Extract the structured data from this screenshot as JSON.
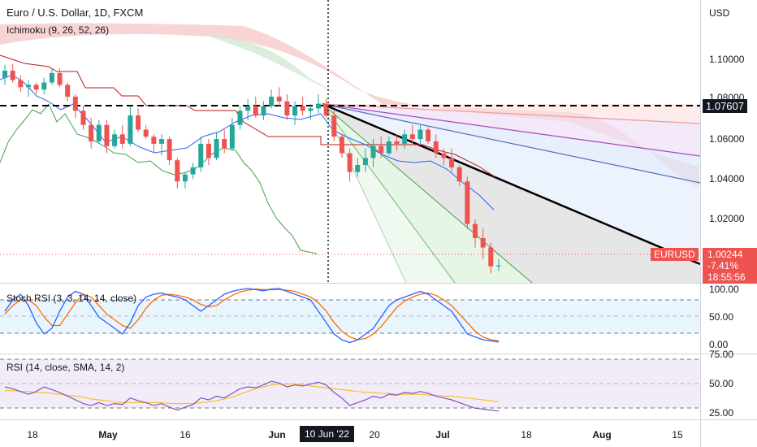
{
  "header": {
    "title": "Euro / U.S. Dollar, 1D, FXCM",
    "indicator": "Ichimoku (9, 26, 52, 26)",
    "currency": "USD"
  },
  "price_axis": {
    "labels": [
      "1.10000",
      "1.08000",
      "1.06000",
      "1.04000",
      "1.02000"
    ]
  },
  "badges": {
    "level_label": "1.07607",
    "symbol": "EURUSD",
    "price": "1.00244",
    "change": "-7.41%",
    "countdown": "18:55:56"
  },
  "stoch_panel": {
    "title": "Stoch RSI (3, 3, 14, 14, close)",
    "labels": [
      "100.00",
      "50.00",
      "0.00"
    ]
  },
  "rsi_panel": {
    "title": "RSI (14, close, SMA, 14, 2)",
    "labels": [
      "75.00",
      "50.00",
      "25.00"
    ]
  },
  "time_axis": {
    "labels": [
      "18",
      "May",
      "16",
      "Jun",
      "20",
      "Jul",
      "18",
      "Aug",
      "15"
    ],
    "crosshair_date": "10 Jun '22"
  },
  "colors": {
    "bull": "#26a69a",
    "bear": "#ef5350",
    "tenkan": "#2962ff",
    "kijun": "#b71c1c",
    "chikou": "#43a047",
    "cloud_red": "#f7c6c6",
    "cloud_green": "#cfe8cf",
    "stoch_k": "#2962ff",
    "stoch_d": "#ff6d00",
    "rsi": "#7e57c2",
    "rsi_ma": "#fbc02d"
  },
  "chart_data": {
    "type": "candlestick",
    "title": "Euro / U.S. Dollar, 1D, FXCM",
    "y_range": [
      0.995,
      1.115
    ],
    "horizontal_level": 1.07607,
    "last_price": 1.00244,
    "candles": [
      [
        1.082,
        1.0875,
        1.079,
        1.085
      ],
      [
        1.085,
        1.088,
        1.08,
        1.081
      ],
      [
        1.081,
        1.083,
        1.076,
        1.078
      ],
      [
        1.078,
        1.081,
        1.074,
        1.079
      ],
      [
        1.079,
        1.08,
        1.075,
        1.077
      ],
      [
        1.077,
        1.082,
        1.075,
        1.08
      ],
      [
        1.08,
        1.086,
        1.079,
        1.084
      ],
      [
        1.084,
        1.086,
        1.078,
        1.079
      ],
      [
        1.079,
        1.08,
        1.072,
        1.074
      ],
      [
        1.074,
        1.075,
        1.065,
        1.068
      ],
      [
        1.068,
        1.07,
        1.06,
        1.062
      ],
      [
        1.062,
        1.065,
        1.052,
        1.055
      ],
      [
        1.055,
        1.064,
        1.054,
        1.062
      ],
      [
        1.062,
        1.064,
        1.05,
        1.053
      ],
      [
        1.053,
        1.06,
        1.052,
        1.058
      ],
      [
        1.058,
        1.062,
        1.052,
        1.054
      ],
      [
        1.054,
        1.07,
        1.053,
        1.066
      ],
      [
        1.066,
        1.069,
        1.059,
        1.06
      ],
      [
        1.06,
        1.062,
        1.056,
        1.057
      ],
      [
        1.057,
        1.058,
        1.05,
        1.054
      ],
      [
        1.054,
        1.058,
        1.049,
        1.056
      ],
      [
        1.056,
        1.057,
        1.045,
        1.047
      ],
      [
        1.047,
        1.048,
        1.035,
        1.038
      ],
      [
        1.038,
        1.042,
        1.035,
        1.041
      ],
      [
        1.041,
        1.046,
        1.039,
        1.044
      ],
      [
        1.044,
        1.057,
        1.042,
        1.054
      ],
      [
        1.054,
        1.056,
        1.045,
        1.048
      ],
      [
        1.048,
        1.059,
        1.047,
        1.056
      ],
      [
        1.056,
        1.06,
        1.05,
        1.052
      ],
      [
        1.052,
        1.065,
        1.051,
        1.062
      ],
      [
        1.062,
        1.07,
        1.06,
        1.068
      ],
      [
        1.068,
        1.073,
        1.064,
        1.07
      ],
      [
        1.07,
        1.074,
        1.065,
        1.066
      ],
      [
        1.066,
        1.072,
        1.064,
        1.07
      ],
      [
        1.07,
        1.077,
        1.069,
        1.074
      ],
      [
        1.074,
        1.078,
        1.07,
        1.072
      ],
      [
        1.072,
        1.075,
        1.064,
        1.066
      ],
      [
        1.066,
        1.072,
        1.062,
        1.07
      ],
      [
        1.07,
        1.074,
        1.066,
        1.068
      ],
      [
        1.068,
        1.071,
        1.064,
        1.069
      ],
      [
        1.069,
        1.075,
        1.067,
        1.071
      ],
      [
        1.071,
        1.073,
        1.065,
        1.066
      ],
      [
        1.066,
        1.068,
        1.055,
        1.057
      ],
      [
        1.057,
        1.058,
        1.048,
        1.05
      ],
      [
        1.05,
        1.052,
        1.038,
        1.042
      ],
      [
        1.042,
        1.048,
        1.04,
        1.045
      ],
      [
        1.045,
        1.052,
        1.042,
        1.048
      ],
      [
        1.048,
        1.056,
        1.044,
        1.053
      ],
      [
        1.053,
        1.057,
        1.048,
        1.05
      ],
      [
        1.05,
        1.057,
        1.049,
        1.055
      ],
      [
        1.055,
        1.058,
        1.051,
        1.054
      ],
      [
        1.054,
        1.06,
        1.052,
        1.058
      ],
      [
        1.058,
        1.062,
        1.054,
        1.056
      ],
      [
        1.056,
        1.062,
        1.054,
        1.06
      ],
      [
        1.06,
        1.061,
        1.054,
        1.055
      ],
      [
        1.055,
        1.058,
        1.048,
        1.05
      ],
      [
        1.05,
        1.052,
        1.045,
        1.048
      ],
      [
        1.048,
        1.052,
        1.042,
        1.044
      ],
      [
        1.044,
        1.045,
        1.036,
        1.038
      ],
      [
        1.038,
        1.04,
        1.018,
        1.02
      ],
      [
        1.02,
        1.022,
        1.01,
        1.014
      ],
      [
        1.014,
        1.018,
        1.005,
        1.01
      ],
      [
        1.01,
        1.012,
        0.999,
        1.002
      ],
      [
        1.002,
        1.005,
        1.0,
        1.0024
      ]
    ],
    "stoch_rsi": {
      "ylim": [
        0,
        100
      ],
      "k": [
        60,
        80,
        90,
        70,
        40,
        20,
        30,
        60,
        85,
        95,
        90,
        70,
        50,
        40,
        30,
        20,
        40,
        70,
        85,
        90,
        92,
        88,
        85,
        80,
        70,
        60,
        70,
        80,
        90,
        95,
        98,
        100,
        98,
        96,
        99,
        100,
        95,
        90,
        85,
        80,
        60,
        40,
        20,
        10,
        5,
        10,
        20,
        30,
        50,
        70,
        80,
        85,
        90,
        95,
        90,
        80,
        70,
        60,
        40,
        20,
        15,
        10,
        8,
        6
      ],
      "d": [
        55,
        70,
        80,
        80,
        70,
        50,
        35,
        35,
        55,
        75,
        90,
        85,
        70,
        55,
        45,
        35,
        30,
        45,
        65,
        80,
        88,
        90,
        88,
        85,
        80,
        72,
        68,
        70,
        80,
        88,
        94,
        97,
        99,
        98,
        98,
        98,
        97,
        95,
        90,
        85,
        75,
        60,
        40,
        25,
        15,
        10,
        12,
        20,
        33,
        50,
        67,
        78,
        85,
        90,
        92,
        88,
        80,
        70,
        55,
        40,
        25,
        15,
        10,
        8
      ]
    },
    "rsi": {
      "ylim": [
        15,
        85
      ],
      "bands": [
        70,
        30
      ],
      "values": [
        50,
        48,
        45,
        42,
        45,
        50,
        47,
        44,
        40,
        36,
        32,
        30,
        33,
        30,
        32,
        31,
        38,
        35,
        33,
        30,
        32,
        28,
        25,
        28,
        31,
        38,
        36,
        40,
        38,
        43,
        48,
        50,
        49,
        52,
        56,
        54,
        50,
        52,
        51,
        53,
        55,
        52,
        44,
        38,
        30,
        33,
        36,
        40,
        38,
        42,
        41,
        44,
        43,
        45,
        43,
        40,
        38,
        36,
        33,
        30,
        27,
        26,
        25,
        24
      ],
      "ma": [
        46,
        46,
        45,
        45,
        44,
        44,
        43,
        42,
        41,
        40,
        39,
        37,
        36,
        35,
        34,
        33,
        33,
        33,
        33,
        33,
        33,
        32,
        32,
        32,
        32,
        33,
        34,
        35,
        37,
        39,
        42,
        45,
        48,
        50,
        52,
        53,
        53,
        53,
        52,
        51,
        50,
        49,
        48,
        47,
        46,
        45,
        44,
        44,
        43,
        43,
        42,
        42,
        42,
        42,
        41,
        41,
        40,
        40,
        39,
        38,
        37,
        36,
        35,
        34
      ]
    }
  }
}
